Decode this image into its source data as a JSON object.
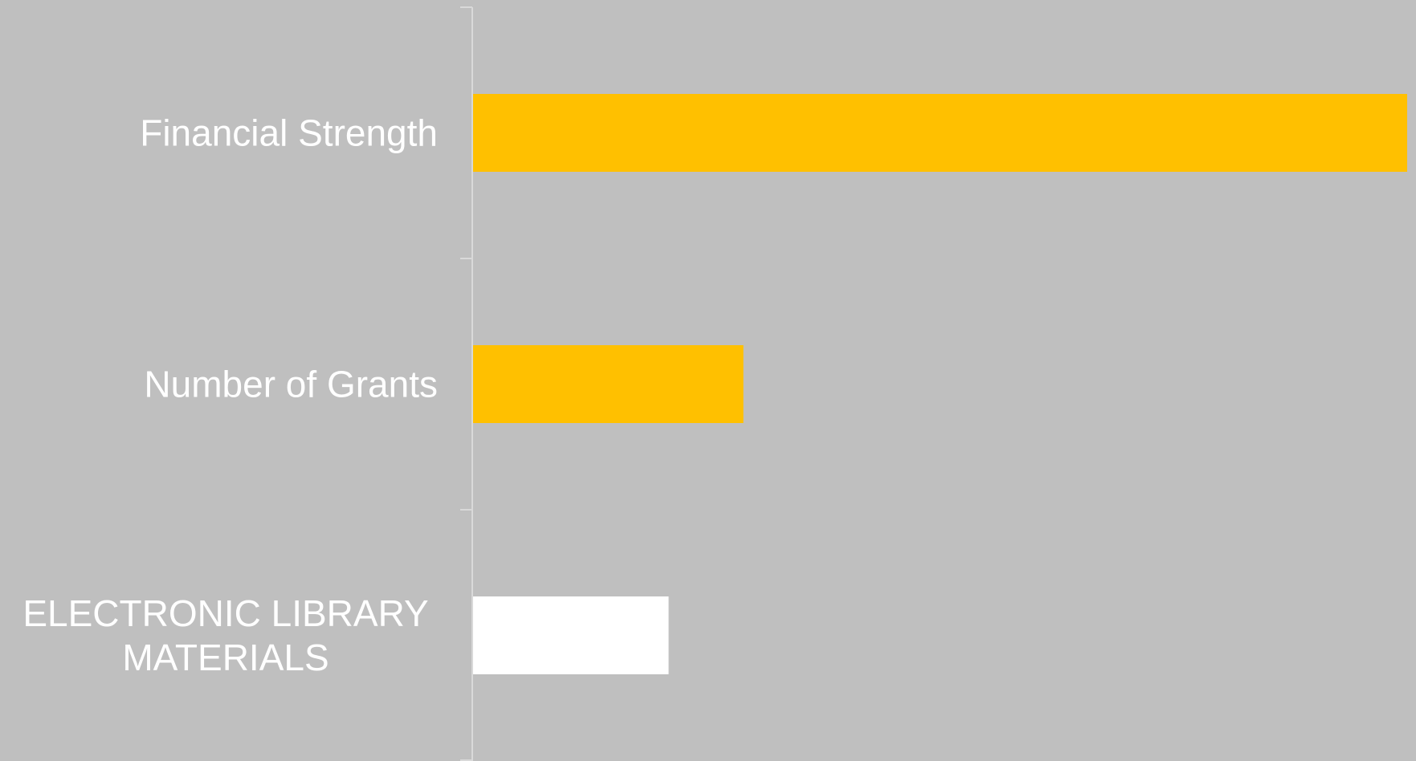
{
  "chart_data": {
    "type": "bar",
    "orientation": "horizontal",
    "title": "",
    "xlabel": "",
    "ylabel": "",
    "categories": [
      "Financial Strength",
      "Number of Grants",
      "ELECTRONIC LIBRARY MATERIALS"
    ],
    "category_lines": [
      [
        "Financial Strength"
      ],
      [
        "Number of Grants"
      ],
      [
        "ELECTRONIC LIBRARY",
        "MATERIALS"
      ]
    ],
    "values": [
      100,
      29,
      21
    ],
    "xlim": [
      0,
      100
    ],
    "grid": false,
    "legend": "none",
    "bar_colors": [
      "#ffc000",
      "#ffc000",
      "#ffffff"
    ],
    "background_color": "#bfbfbf",
    "axis_color": "#d9d9d9",
    "label_color": "#ffffff"
  }
}
